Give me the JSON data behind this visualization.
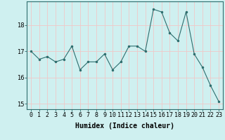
{
  "x": [
    0,
    1,
    2,
    3,
    4,
    5,
    6,
    7,
    8,
    9,
    10,
    11,
    12,
    13,
    14,
    15,
    16,
    17,
    18,
    19,
    20,
    21,
    22,
    23
  ],
  "y": [
    17.0,
    16.7,
    16.8,
    16.6,
    16.7,
    17.2,
    16.3,
    16.6,
    16.6,
    16.9,
    16.3,
    16.6,
    17.2,
    17.2,
    17.0,
    18.6,
    18.5,
    17.7,
    17.4,
    18.5,
    16.9,
    16.4,
    15.7,
    15.1
  ],
  "line_color": "#2e6e6e",
  "marker": ".",
  "marker_size": 3,
  "background_color": "#cff0f0",
  "grid_color": "#f0c8c8",
  "xlabel": "Humidex (Indice chaleur)",
  "xlabel_fontsize": 7,
  "tick_fontsize": 6,
  "ylim": [
    14.8,
    18.9
  ],
  "yticks": [
    15,
    16,
    17,
    18
  ],
  "xtick_labels": [
    "0",
    "1",
    "2",
    "3",
    "4",
    "5",
    "6",
    "7",
    "8",
    "9",
    "10",
    "11",
    "12",
    "13",
    "14",
    "15",
    "16",
    "17",
    "18",
    "19",
    "20",
    "21",
    "22",
    "23"
  ]
}
